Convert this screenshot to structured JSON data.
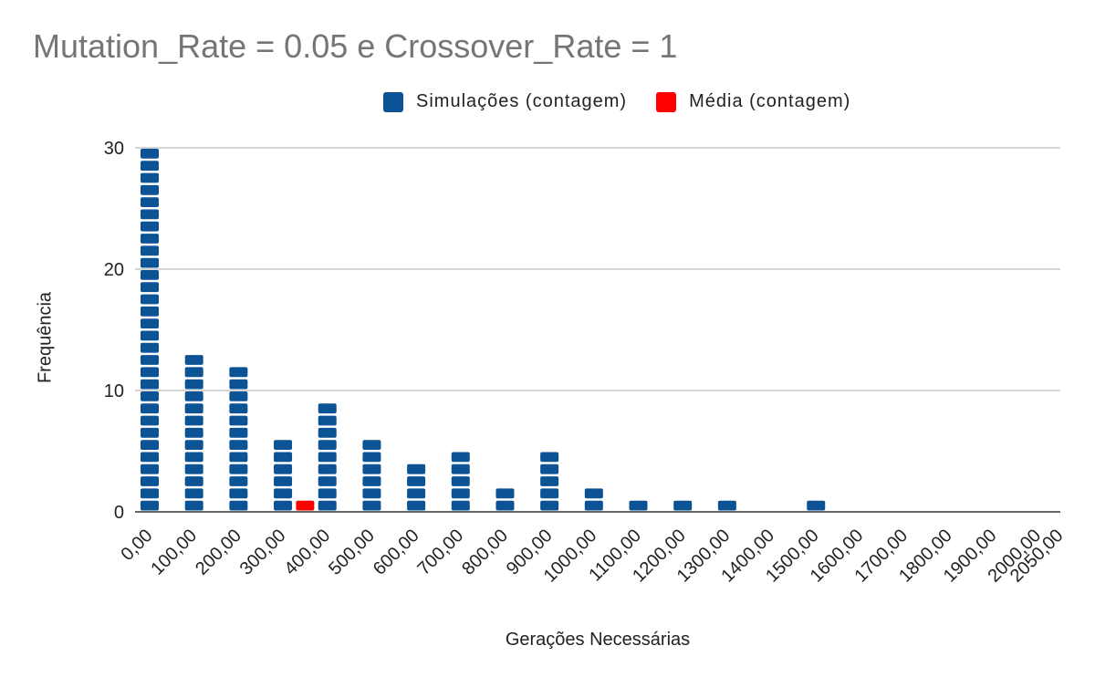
{
  "chart_data": {
    "type": "bar",
    "title": "Mutation_Rate = 0.05 e Crossover_Rate = 1",
    "xlabel": "Gerações Necessárias",
    "ylabel": "Frequência",
    "ylim": [
      0,
      30
    ],
    "yticks": [
      "0",
      "10",
      "20",
      "30"
    ],
    "xticks": [
      "0,00",
      "100,00",
      "200,00",
      "300,00",
      "400,00",
      "500,00",
      "600,00",
      "700,00",
      "800,00",
      "900,00",
      "1000,00",
      "1100,00",
      "1200,00",
      "1300,00",
      "1400,00",
      "1500,00",
      "1600,00",
      "1700,00",
      "1800,00",
      "1900,00",
      "2000,00",
      "2050,00"
    ],
    "xlim": [
      0,
      2050
    ],
    "legend": "top",
    "grid": true,
    "series": [
      {
        "name": "Simulações (contagem)",
        "color": "#0b5394",
        "x": [
          0,
          100,
          200,
          300,
          400,
          500,
          600,
          700,
          800,
          900,
          1000,
          1100,
          1200,
          1300,
          1500
        ],
        "values": [
          30,
          13,
          12,
          6,
          9,
          6,
          4,
          5,
          2,
          5,
          2,
          1,
          1,
          1,
          1
        ]
      },
      {
        "name": "Média  (contagem)",
        "color": "#ff0000",
        "x": [
          350
        ],
        "values": [
          1
        ]
      }
    ]
  }
}
